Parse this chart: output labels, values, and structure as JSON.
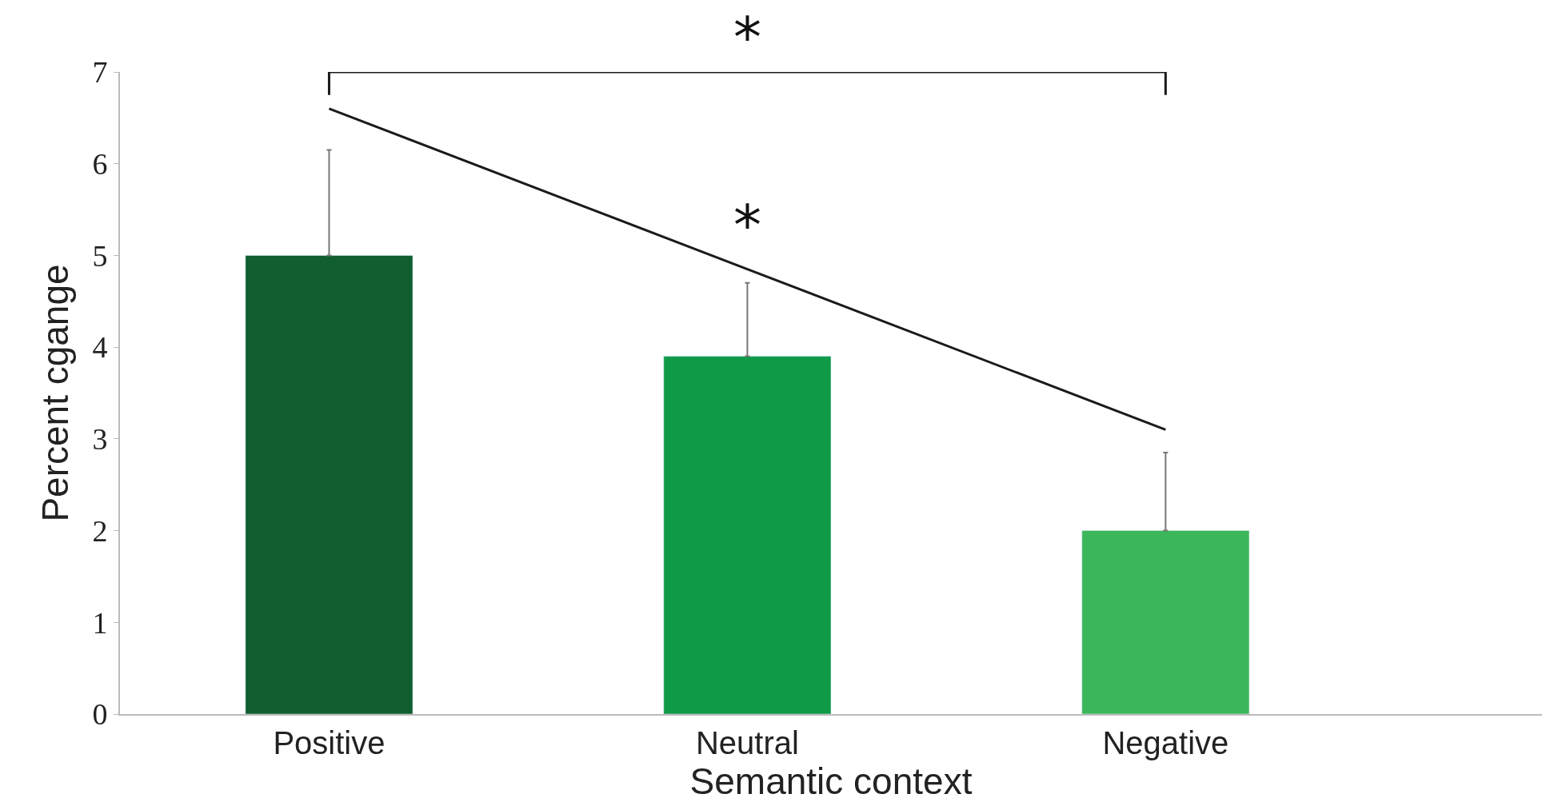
{
  "chart_data": {
    "type": "bar",
    "xlabel": "Semantic context",
    "ylabel": "Percent cgange",
    "categories": [
      "Positive",
      "Neutral",
      "Negative"
    ],
    "series": [
      {
        "values": [
          5.0,
          3.9,
          2.0
        ],
        "colors": [
          "#115e30",
          "#0f9a48",
          "#3cb65a"
        ],
        "errors": [
          [
            5.0,
            6.15
          ],
          [
            3.9,
            4.7
          ],
          [
            2.0,
            2.85
          ]
        ]
      },
      {
        "type": "line",
        "values": [
          6.6,
          4.85,
          3.1
        ],
        "color": "#1a1a1a"
      }
    ],
    "ylim": [
      0,
      7
    ],
    "yticks": [
      0,
      1,
      2,
      3,
      4,
      5,
      6,
      7
    ],
    "annotations": [
      "*",
      "*"
    ]
  }
}
